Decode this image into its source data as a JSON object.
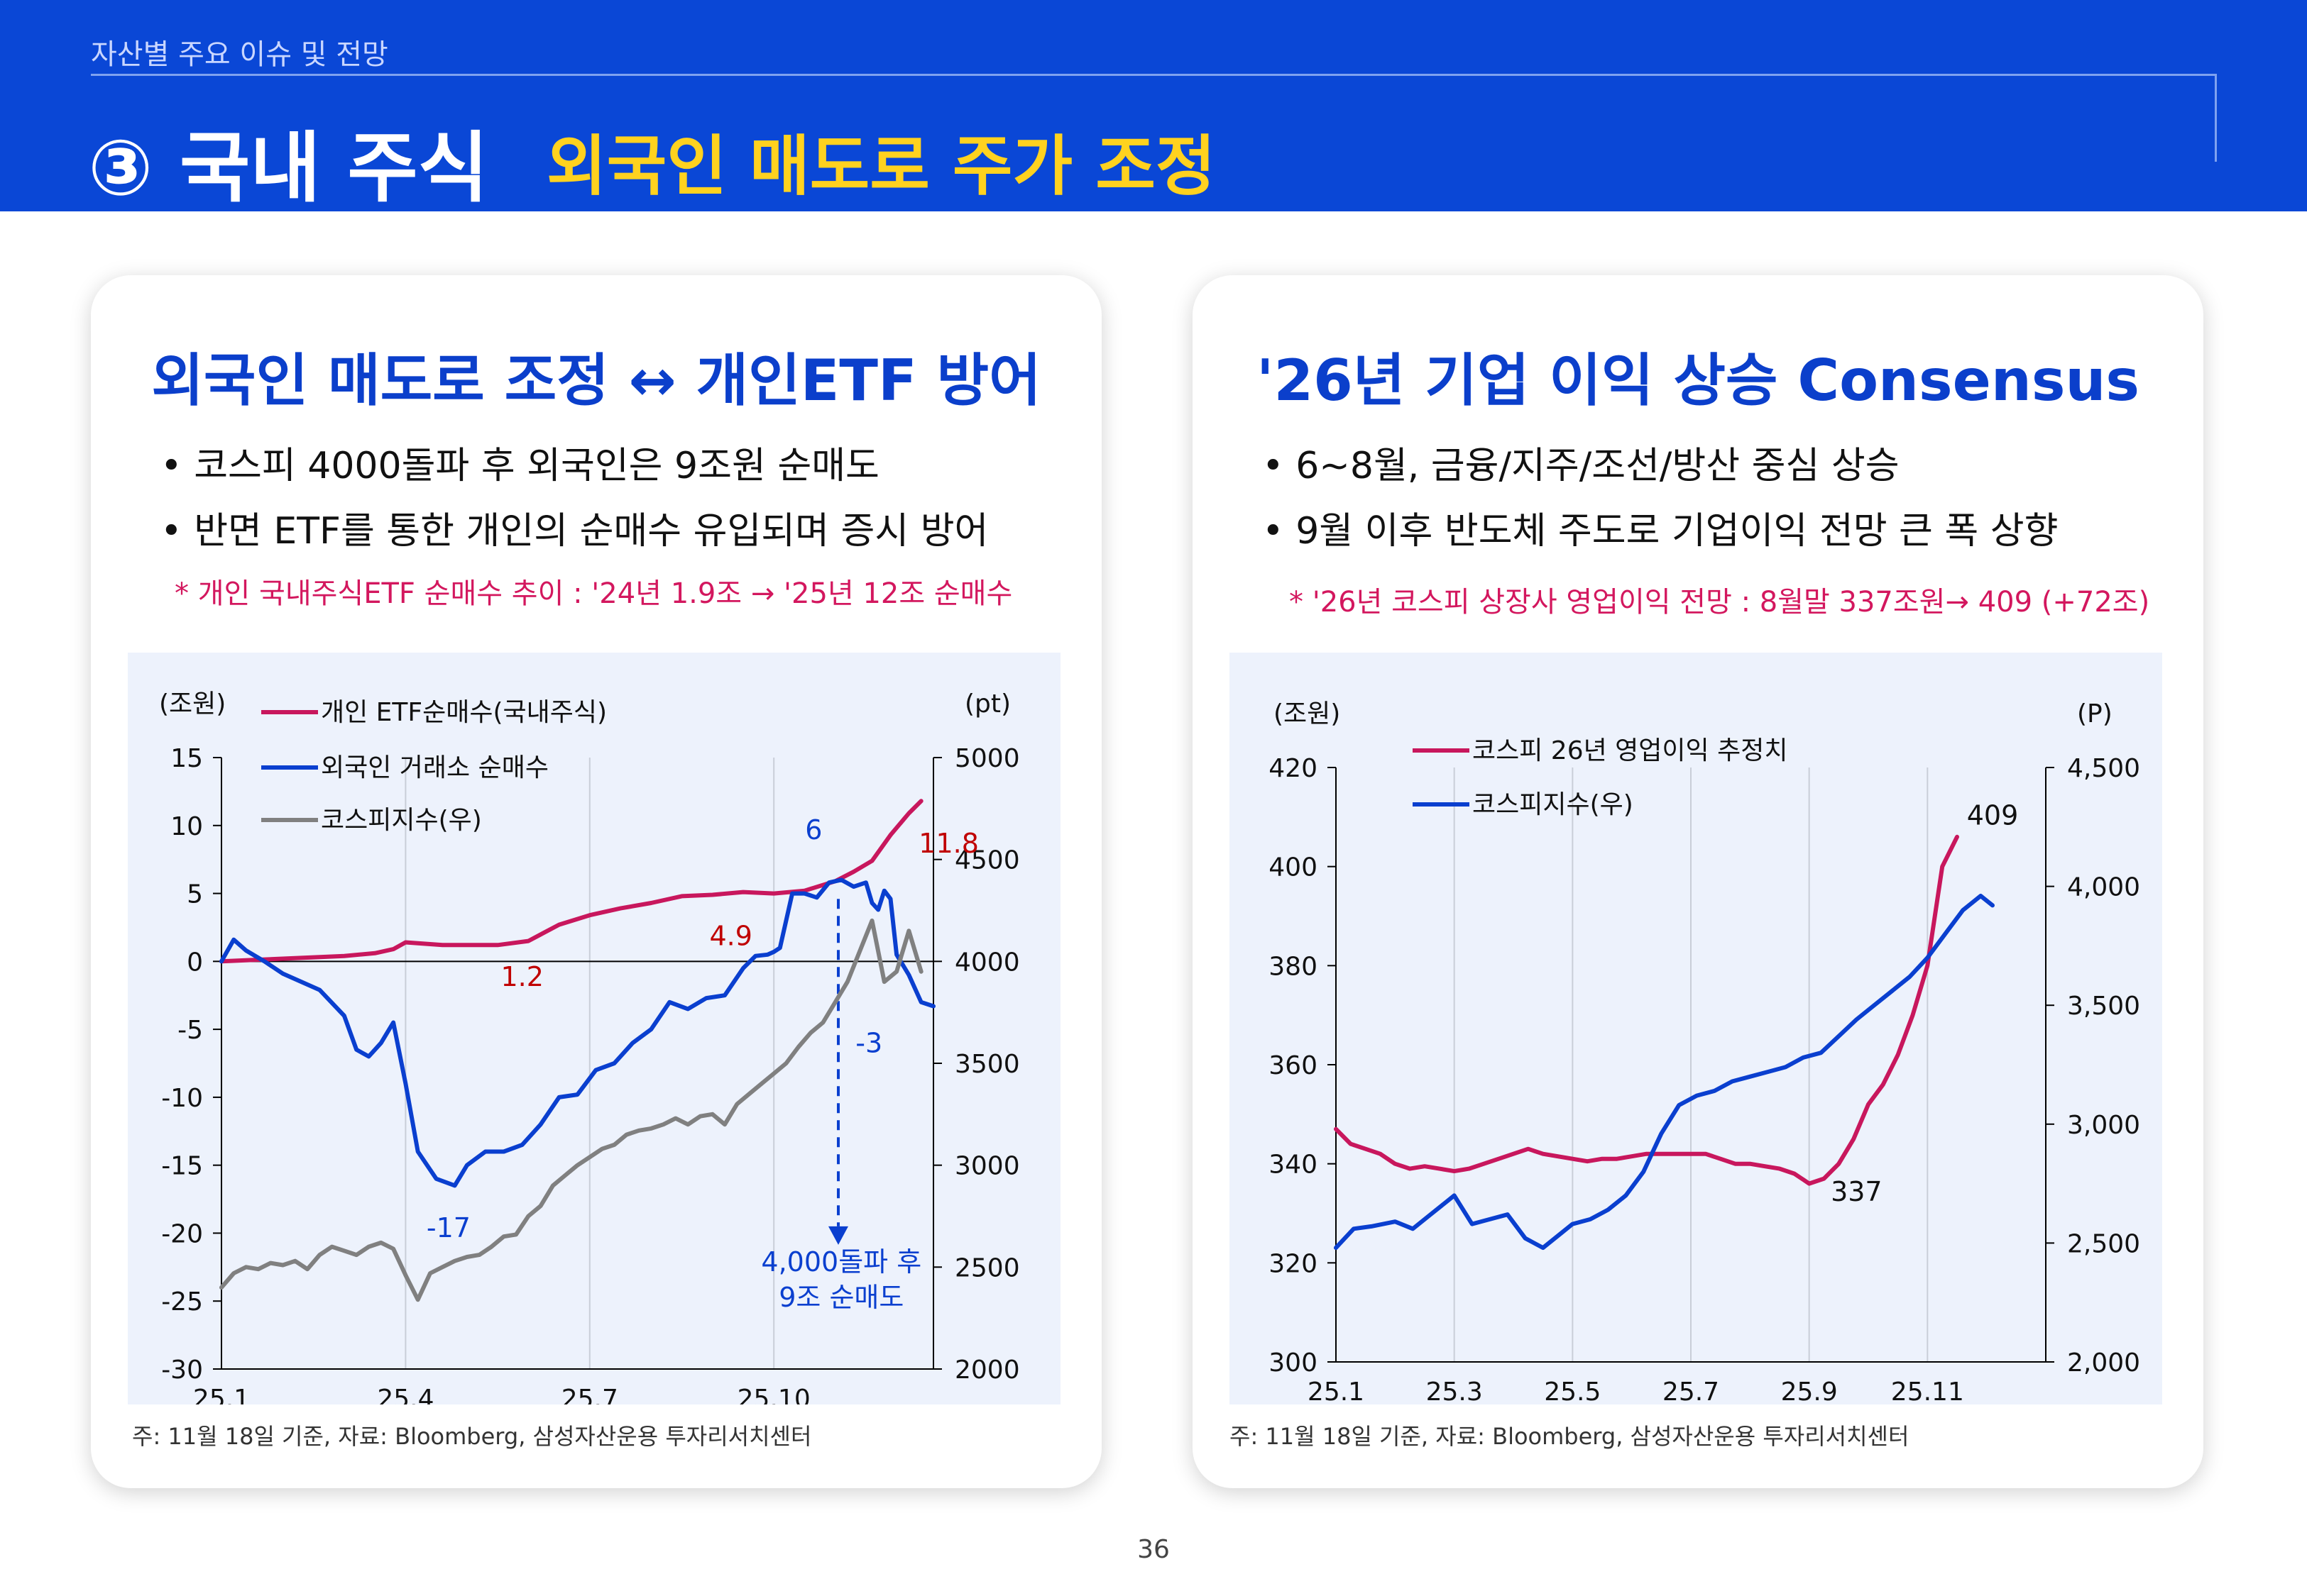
{
  "header": {
    "eyebrow": "자산별 주요 이슈 및 전망",
    "title": "③ 국내 주식",
    "subtitle": "외국인 매도로 주가 조정"
  },
  "left_card": {
    "title": "외국인 매도로 조정 ↔  개인ETF 방어",
    "bullets": [
      "• 코스피 4000돌파 후 외국인은 9조원 순매도",
      "• 반면 ETF를 통한 개인의 순매수 유입되며 증시 방어"
    ],
    "note": "* 개인 국내주식ETF 순매수 추이 : '24년 1.9조 → '25년 12조 순매수",
    "source": "주: 11월 18일 기준, 자료: Bloomberg, 삼성자산운용 투자리서치센터"
  },
  "right_card": {
    "title": "'26년 기업 이익 상승 Consensus",
    "bullets": [
      "• 6~8월, 금융/지주/조선/방산 중심 상승",
      "• 9월 이후 반도체 주도로 기업이익 전망 큰 폭 상향"
    ],
    "note": "* '26년 코스피 상장사 영업이익 전망 : 8월말 337조원→ 409 (+72조)",
    "source": "주: 11월 18일 기준, 자료: Bloomberg, 삼성자산운용 투자리서치센터"
  },
  "page_number": "36",
  "colors": {
    "header_bg": "#0A47D6",
    "subtitle": "#FFD21F",
    "title_blue": "#0B3FCB",
    "note": "#D3175E",
    "magenta": "#C8175D",
    "blue": "#0A3FCF",
    "gray": "#808080",
    "chart_bg": "#EDF2FC",
    "red_label": "#C00000"
  },
  "chart_data": [
    {
      "type": "line",
      "left_unit": "(조원)",
      "right_unit": "(pt)",
      "ylim": [
        -30,
        15
      ],
      "y_ticks": [
        "15",
        "10",
        "5",
        "0",
        "-5",
        "-10",
        "-15",
        "-20",
        "-25",
        "-30"
      ],
      "y2lim": [
        2000,
        5000
      ],
      "y2_ticks": [
        "5000",
        "4500",
        "4000",
        "3500",
        "3000",
        "2500",
        "2000"
      ],
      "x_ticks": [
        "25.1",
        "25.4",
        "25.7",
        "25.10"
      ],
      "x_tick_pos": [
        0,
        3,
        6,
        9
      ],
      "xlim": [
        0,
        11.6
      ],
      "legend_position": "top-left",
      "series": [
        {
          "name": "개인 ETF순매수(국내주식)",
          "axis": "left",
          "color": "#C8175D",
          "x": [
            0,
            0.5,
            1.0,
            1.5,
            2.0,
            2.5,
            2.8,
            3.0,
            3.3,
            3.6,
            4.0,
            4.5,
            5.0,
            5.5,
            6.0,
            6.5,
            7.0,
            7.5,
            8.0,
            8.5,
            9.0,
            9.5,
            10.0,
            10.3,
            10.6,
            10.9,
            11.2,
            11.4
          ],
          "y": [
            0,
            0.1,
            0.2,
            0.3,
            0.4,
            0.6,
            0.9,
            1.4,
            1.3,
            1.2,
            1.2,
            1.2,
            1.5,
            2.7,
            3.4,
            3.9,
            4.3,
            4.8,
            4.9,
            5.1,
            5.0,
            5.2,
            5.9,
            6.6,
            7.4,
            9.3,
            10.9,
            11.8
          ]
        },
        {
          "name": "외국인 거래소 순매수",
          "axis": "left",
          "color": "#0A3FCF",
          "x": [
            0,
            0.2,
            0.4,
            0.7,
            1.0,
            1.3,
            1.6,
            2.0,
            2.2,
            2.4,
            2.6,
            2.8,
            3.0,
            3.2,
            3.5,
            3.8,
            4.0,
            4.3,
            4.6,
            4.9,
            5.2,
            5.5,
            5.8,
            6.1,
            6.4,
            6.7,
            7.0,
            7.3,
            7.6,
            7.9,
            8.2,
            8.5,
            8.7,
            8.9,
            9.0,
            9.1,
            9.3,
            9.5,
            9.7,
            9.9,
            10.1,
            10.3,
            10.5,
            10.6,
            10.7,
            10.8,
            10.9,
            11.0,
            11.2,
            11.4,
            11.6
          ],
          "y": [
            0,
            1.6,
            0.8,
            0,
            -0.9,
            -1.5,
            -2.1,
            -4.0,
            -6.5,
            -7.0,
            -6.0,
            -4.5,
            -9.0,
            -14.0,
            -16.0,
            -16.5,
            -15.0,
            -14.0,
            -14.0,
            -13.5,
            -12.0,
            -10.0,
            -9.8,
            -8.0,
            -7.5,
            -6.0,
            -5.0,
            -3.0,
            -3.5,
            -2.7,
            -2.5,
            -0.5,
            0.4,
            0.5,
            0.7,
            1.0,
            5.0,
            5.0,
            4.7,
            5.8,
            6.0,
            5.5,
            5.8,
            4.3,
            3.8,
            5.2,
            4.6,
            0.5,
            -1.0,
            -3.0,
            -3.3
          ]
        },
        {
          "name": "코스피지수(우)",
          "axis": "right",
          "color": "#808080",
          "x": [
            0,
            0.2,
            0.4,
            0.6,
            0.8,
            1.0,
            1.2,
            1.4,
            1.6,
            1.8,
            2.0,
            2.2,
            2.4,
            2.6,
            2.8,
            3.0,
            3.2,
            3.4,
            3.6,
            3.8,
            4.0,
            4.2,
            4.4,
            4.6,
            4.8,
            5.0,
            5.2,
            5.4,
            5.6,
            5.8,
            6.0,
            6.2,
            6.4,
            6.6,
            6.8,
            7.0,
            7.2,
            7.4,
            7.6,
            7.8,
            8.0,
            8.2,
            8.4,
            8.6,
            8.8,
            9.0,
            9.2,
            9.4,
            9.6,
            9.8,
            10.0,
            10.2,
            10.4,
            10.6,
            10.8,
            11.0,
            11.2,
            11.4
          ],
          "y": [
            2400,
            2470,
            2500,
            2490,
            2520,
            2510,
            2530,
            2490,
            2560,
            2600,
            2580,
            2560,
            2600,
            2620,
            2590,
            2460,
            2340,
            2470,
            2500,
            2530,
            2550,
            2560,
            2600,
            2650,
            2660,
            2750,
            2800,
            2900,
            2950,
            3000,
            3040,
            3080,
            3100,
            3150,
            3170,
            3180,
            3200,
            3230,
            3200,
            3240,
            3250,
            3200,
            3300,
            3350,
            3400,
            3450,
            3500,
            3580,
            3650,
            3700,
            3800,
            3900,
            4050,
            4200,
            3900,
            3950,
            4150,
            3950
          ]
        }
      ],
      "annotations": [
        {
          "text": "11.8",
          "x": 11.85,
          "y": 8.0,
          "axis": "left",
          "color": "#C00000"
        },
        {
          "text": "4.9",
          "x": 8.3,
          "y": 1.2,
          "axis": "left",
          "color": "#C00000"
        },
        {
          "text": "1.2",
          "x": 4.9,
          "y": -1.8,
          "axis": "left",
          "color": "#C00000"
        },
        {
          "text": "6",
          "x": 9.65,
          "y": 9.0,
          "axis": "left",
          "color": "#0A3FCF"
        },
        {
          "text": "-3",
          "x": 10.55,
          "y": -6.7,
          "axis": "left",
          "color": "#0A3FCF"
        },
        {
          "text": "-17",
          "x": 3.7,
          "y": -20.3,
          "axis": "left",
          "color": "#0A3FCF"
        },
        {
          "text": "4,000돌파 후",
          "x": 10.1,
          "y": -22.8,
          "axis": "left",
          "color": "#0A3FCF"
        },
        {
          "text": "9조 순매도",
          "x": 10.1,
          "y": -25.4,
          "axis": "left",
          "color": "#0A3FCF"
        }
      ]
    },
    {
      "type": "line",
      "left_unit": "(조원)",
      "right_unit": "(P)",
      "ylim": [
        300,
        420
      ],
      "y_ticks": [
        "420",
        "400",
        "380",
        "360",
        "340",
        "320",
        "300"
      ],
      "y2lim": [
        2000,
        4500
      ],
      "y2_ticks": [
        "4,500",
        "4,000",
        "3,500",
        "3,000",
        "2,500",
        "2,000"
      ],
      "x_ticks": [
        "25.1",
        "25.3",
        "25.5",
        "25.7",
        "25.9",
        "25.11"
      ],
      "x_tick_pos": [
        0,
        2,
        4,
        6,
        8,
        10
      ],
      "xlim": [
        0,
        12
      ],
      "legend_position": "top-left",
      "series": [
        {
          "name": "코스피 26년 영업이익 추정치",
          "axis": "left",
          "color": "#C8175D",
          "x": [
            0,
            0.25,
            0.5,
            0.75,
            1.0,
            1.25,
            1.5,
            1.75,
            2.0,
            2.25,
            2.5,
            2.75,
            3.0,
            3.25,
            3.5,
            3.75,
            4.0,
            4.25,
            4.5,
            4.75,
            5.0,
            5.25,
            5.5,
            5.75,
            6.0,
            6.25,
            6.5,
            6.75,
            7.0,
            7.25,
            7.5,
            7.75,
            8.0,
            8.25,
            8.5,
            8.75,
            9.0,
            9.25,
            9.5,
            9.75,
            10.0,
            10.25,
            10.5
          ],
          "y": [
            347,
            344,
            343,
            342,
            340,
            339,
            339.5,
            339,
            338.5,
            339,
            340,
            341,
            342,
            343,
            342,
            341.5,
            341,
            340.5,
            341,
            341,
            341.5,
            342,
            342,
            342,
            342,
            342,
            341,
            340,
            340,
            339.5,
            339,
            338,
            336,
            337,
            340,
            345,
            352,
            356,
            362,
            370,
            380,
            400,
            406
          ]
        },
        {
          "name": "코스피지수(우)",
          "axis": "right",
          "color": "#0A3FCF",
          "x": [
            0,
            0.3,
            0.6,
            1.0,
            1.3,
            1.6,
            2.0,
            2.3,
            2.6,
            2.9,
            3.2,
            3.5,
            3.8,
            4.0,
            4.3,
            4.6,
            4.9,
            5.2,
            5.5,
            5.8,
            6.1,
            6.4,
            6.7,
            7.0,
            7.3,
            7.6,
            7.9,
            8.2,
            8.5,
            8.8,
            9.1,
            9.4,
            9.7,
            10.0,
            10.3,
            10.6,
            10.9,
            11.1
          ],
          "y": [
            2480,
            2560,
            2570,
            2590,
            2560,
            2620,
            2700,
            2580,
            2600,
            2620,
            2520,
            2480,
            2540,
            2580,
            2600,
            2640,
            2700,
            2800,
            2960,
            3080,
            3120,
            3140,
            3180,
            3200,
            3220,
            3240,
            3280,
            3300,
            3370,
            3440,
            3500,
            3560,
            3620,
            3700,
            3800,
            3900,
            3960,
            3920
          ]
        }
      ],
      "annotations": [
        {
          "text": "409",
          "x": 11.1,
          "y": 408.5,
          "axis": "left",
          "color": "#111111"
        },
        {
          "text": "337",
          "x": 8.8,
          "y": 332.5,
          "axis": "left",
          "color": "#111111"
        }
      ]
    }
  ]
}
